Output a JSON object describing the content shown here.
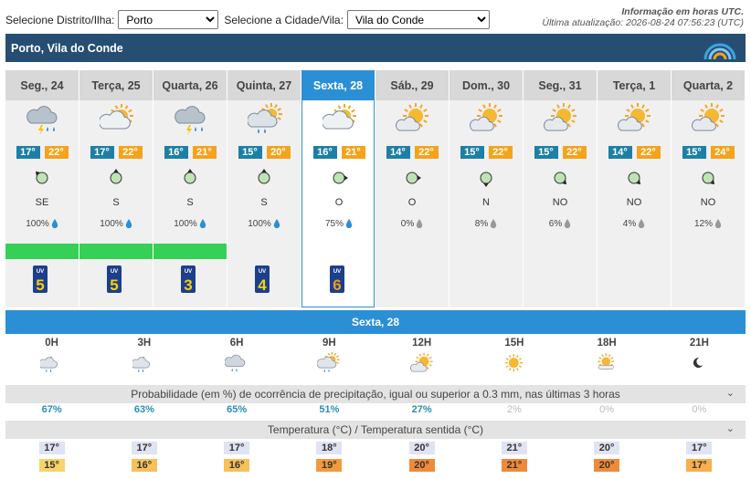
{
  "selectors": {
    "district_label": "Selecione Distrito/Ilha:",
    "district_value": "Porto",
    "city_label": "Selecione a Cidade/Vila:",
    "city_value": "Vila do Conde"
  },
  "info": {
    "line1": "Informação em horas UTC.",
    "line2": "Última atualização: 2026-08-24 07:56:23 (UTC)"
  },
  "header": {
    "title": "Porto, Vila do Conde"
  },
  "days": [
    {
      "label": "Seg., 24",
      "icon": "thunder-rain",
      "min": "17°",
      "max": "22°",
      "wind_dir": "SE",
      "precip": "100%",
      "rain": true,
      "uv": "5"
    },
    {
      "label": "Terça, 25",
      "icon": "partly-cloudy",
      "min": "17°",
      "max": "22°",
      "wind_dir": "S",
      "precip": "100%",
      "rain": true,
      "uv": "5"
    },
    {
      "label": "Quarta, 26",
      "icon": "thunder-rain",
      "min": "16°",
      "max": "21°",
      "wind_dir": "S",
      "precip": "100%",
      "rain": true,
      "uv": "3"
    },
    {
      "label": "Quinta, 27",
      "icon": "partly-cloudy-rain",
      "min": "15°",
      "max": "20°",
      "wind_dir": "S",
      "precip": "100%",
      "rain": false,
      "uv": "4"
    },
    {
      "label": "Sexta, 28",
      "icon": "partly-cloudy",
      "min": "16°",
      "max": "21°",
      "wind_dir": "O",
      "precip": "75%",
      "rain": false,
      "uv": "6",
      "selected": true
    },
    {
      "label": "Sáb., 29",
      "icon": "sun-cloud",
      "min": "14°",
      "max": "22°",
      "wind_dir": "O",
      "precip": "0%",
      "rain": false,
      "uv": ""
    },
    {
      "label": "Dom., 30",
      "icon": "sun-cloud",
      "min": "15°",
      "max": "22°",
      "wind_dir": "N",
      "precip": "8%",
      "rain": false,
      "uv": ""
    },
    {
      "label": "Seg., 31",
      "icon": "sun-cloud",
      "min": "15°",
      "max": "22°",
      "wind_dir": "NO",
      "precip": "6%",
      "rain": false,
      "uv": ""
    },
    {
      "label": "Terça, 1",
      "icon": "sun-cloud",
      "min": "14°",
      "max": "22°",
      "wind_dir": "NO",
      "precip": "4%",
      "rain": false,
      "uv": ""
    },
    {
      "label": "Quarta, 2",
      "icon": "sun-cloud",
      "min": "15°",
      "max": "24°",
      "wind_dir": "NO",
      "precip": "12%",
      "rain": false,
      "uv": ""
    }
  ],
  "hourly": {
    "title": "Sexta, 28",
    "hours": [
      "0H",
      "3H",
      "6H",
      "9H",
      "12H",
      "15H",
      "18H",
      "21H"
    ],
    "icons": [
      "night-cloud-rain",
      "night-cloud-rain",
      "cloud-rain",
      "sun-cloud-rain",
      "sun-cloud",
      "sun",
      "sun-cloud-low",
      "moon"
    ],
    "precip_title": "Probabilidade (em %) de ocorrência de precipitação, igual ou superior a 0.3 mm, nas últimas 3 horas",
    "precip": [
      "67%",
      "63%",
      "65%",
      "51%",
      "27%",
      "2%",
      "0%",
      "0%"
    ],
    "temp_title": "Temperatura (°C) / Temperatura sentida (°C)",
    "temp": [
      "17°",
      "17°",
      "17°",
      "18°",
      "20°",
      "21°",
      "20°",
      "17°"
    ],
    "feels": [
      "15°",
      "16°",
      "16°",
      "19°",
      "20°",
      "21°",
      "20°",
      "17°"
    ],
    "feels_colors": [
      "#f7d36a",
      "#f7c05a",
      "#f7c05a",
      "#f29a3c",
      "#f08a38",
      "#f08a38",
      "#f08a38",
      "#f7b04c"
    ]
  }
}
